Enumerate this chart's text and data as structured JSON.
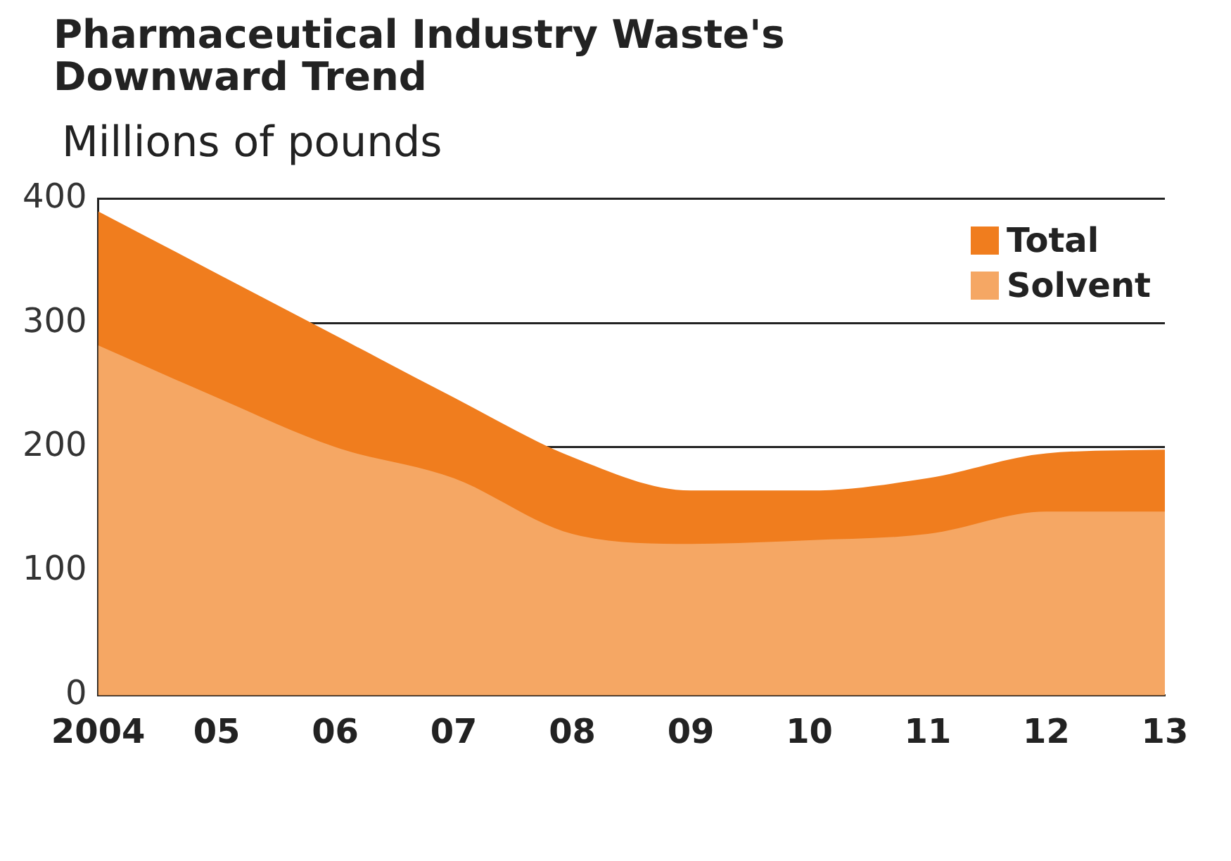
{
  "chart_data": {
    "type": "area",
    "title": "Pharmaceutical Industry Waste's Downward Trend",
    "ylabel": "Millions of pounds",
    "categories": [
      "2004",
      "05",
      "06",
      "07",
      "08",
      "09",
      "10",
      "11",
      "12",
      "13"
    ],
    "series": [
      {
        "name": "Total",
        "color": "#f07d1e",
        "values": [
          390,
          340,
          290,
          240,
          192,
          165,
          165,
          175,
          195,
          198
        ]
      },
      {
        "name": "Solvent",
        "color": "#f5a764",
        "values": [
          282,
          240,
          200,
          175,
          130,
          122,
          125,
          130,
          148,
          148
        ]
      }
    ],
    "ylim": [
      0,
      400
    ],
    "yticks": [
      0,
      100,
      200,
      300,
      400
    ],
    "grid": "y",
    "legend": "top right",
    "marker": "none"
  }
}
